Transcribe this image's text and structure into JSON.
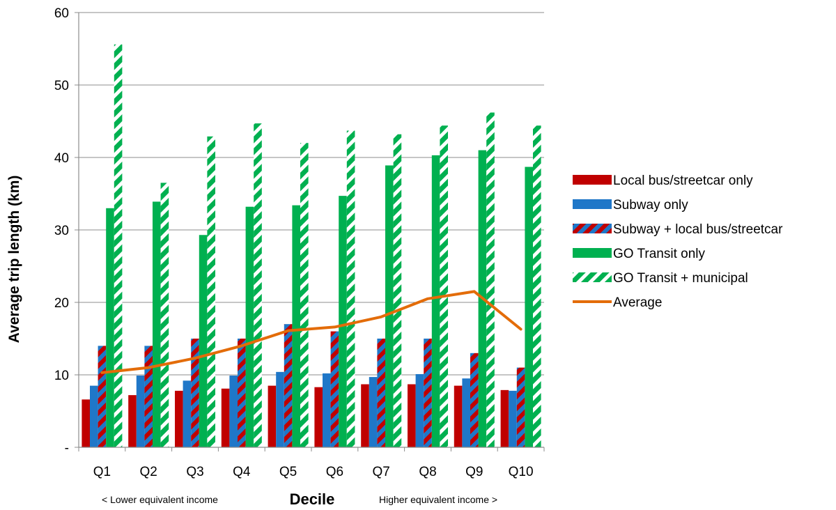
{
  "chart_data": {
    "type": "bar",
    "title": "",
    "ylabel": "Average trip length (km)",
    "xlabel": "Decile",
    "x_note_left": "< Lower equivalent income",
    "x_note_right": "Higher equivalent income >",
    "ylim": [
      0,
      60
    ],
    "yticks": [
      0,
      10,
      20,
      30,
      40,
      50,
      60
    ],
    "ytick_labels": [
      "-",
      "10",
      "20",
      "30",
      "40",
      "50",
      "60"
    ],
    "grid": true,
    "legend_position": "right",
    "categories": [
      "Q1",
      "Q2",
      "Q3",
      "Q4",
      "Q5",
      "Q6",
      "Q7",
      "Q8",
      "Q9",
      "Q10"
    ],
    "series": [
      {
        "name": "Local bus/streetcar only",
        "kind": "bar",
        "color": "#C00000",
        "values": [
          6.6,
          7.2,
          7.8,
          8.1,
          8.5,
          8.3,
          8.7,
          8.7,
          8.5,
          7.9
        ]
      },
      {
        "name": "Subway only",
        "kind": "bar",
        "color": "#1F77C8",
        "values": [
          8.5,
          9.9,
          9.2,
          9.9,
          10.4,
          10.2,
          9.7,
          10.1,
          9.5,
          7.8
        ]
      },
      {
        "name": "Subway + local bus/streetcar",
        "kind": "bar",
        "pattern": "red-blue-stripes",
        "color": "#C00000",
        "color2": "#1F77C8",
        "values": [
          14,
          14,
          15,
          15,
          17,
          16,
          15,
          15,
          13,
          11
        ]
      },
      {
        "name": "GO Transit only",
        "kind": "bar",
        "color": "#00B050",
        "values": [
          33,
          33.9,
          29.3,
          33.2,
          33.4,
          34.7,
          38.9,
          40.3,
          41,
          38.7
        ]
      },
      {
        "name": "GO Transit + municipal",
        "kind": "bar",
        "pattern": "green-white-stripes",
        "color": "#00B050",
        "color2": "#FFFFFF",
        "values": [
          55.6,
          36.5,
          42.9,
          44.7,
          42,
          43.7,
          43.2,
          44.4,
          46.2,
          44.4
        ]
      },
      {
        "name": "Average",
        "kind": "line",
        "color": "#E36C09",
        "values": [
          10.3,
          11,
          12.3,
          14,
          16.1,
          16.6,
          18,
          20.5,
          21.5,
          16.3
        ]
      }
    ]
  }
}
